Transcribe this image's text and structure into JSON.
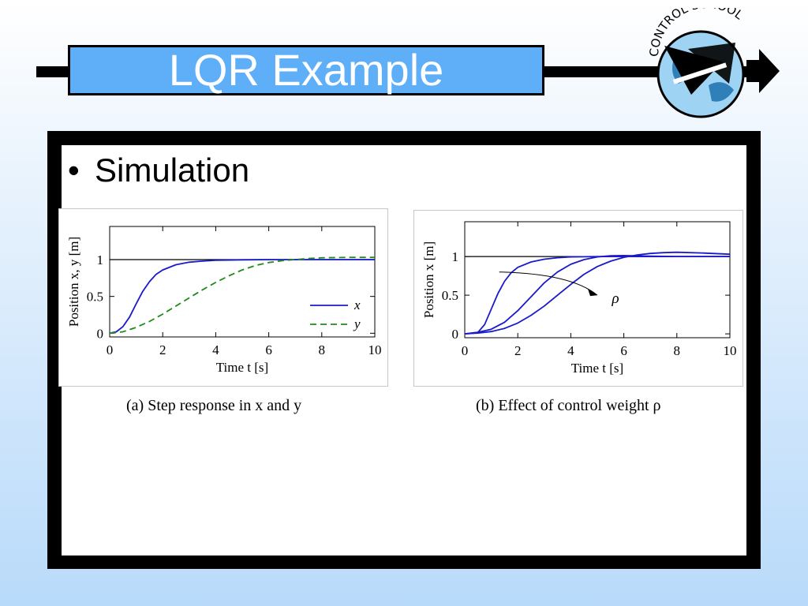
{
  "slide": {
    "title": "LQR Example",
    "bullet": "Simulation",
    "logo_text": "CONTROL SCHOOL",
    "colors": {
      "title_box": "#5eaef8",
      "frame": "#000000"
    }
  },
  "chart_data": [
    {
      "type": "line",
      "caption": "(a) Step response in x and y",
      "xlabel": "Time t [s]",
      "ylabel": "Position x, y [m]",
      "xlim": [
        0,
        10
      ],
      "ylim": [
        -0.05,
        1.45
      ],
      "xticks": [
        0,
        2,
        4,
        6,
        8,
        10
      ],
      "yticks": [
        0,
        0.5,
        1
      ],
      "reference": 1,
      "legend": "lower-right",
      "series": [
        {
          "name": "x",
          "color": "#1a1acc",
          "style": "solid",
          "x": [
            0,
            0.25,
            0.5,
            0.75,
            1,
            1.25,
            1.5,
            1.75,
            2,
            2.5,
            3,
            3.5,
            4,
            5,
            6,
            7,
            8,
            9,
            10
          ],
          "y": [
            0,
            0.02,
            0.09,
            0.22,
            0.4,
            0.57,
            0.7,
            0.8,
            0.86,
            0.93,
            0.965,
            0.98,
            0.99,
            0.997,
            1.0,
            1.0,
            1.0,
            1.0,
            1.0
          ]
        },
        {
          "name": "y",
          "color": "#208a20",
          "style": "dashed",
          "x": [
            0,
            0.5,
            1,
            1.5,
            2,
            2.5,
            3,
            3.5,
            4,
            4.5,
            5,
            5.5,
            6,
            6.5,
            7,
            7.5,
            8,
            9,
            10
          ],
          "y": [
            0,
            0.02,
            0.08,
            0.16,
            0.26,
            0.37,
            0.48,
            0.59,
            0.69,
            0.78,
            0.86,
            0.92,
            0.96,
            0.985,
            1.0,
            1.015,
            1.025,
            1.03,
            1.03
          ]
        }
      ]
    },
    {
      "type": "line",
      "caption": "(b) Effect of control weight ρ",
      "xlabel": "Time t [s]",
      "ylabel": "Position x [m]",
      "xlim": [
        0,
        10
      ],
      "ylim": [
        -0.05,
        1.45
      ],
      "xticks": [
        0,
        2,
        4,
        6,
        8,
        10
      ],
      "yticks": [
        0,
        0.5,
        1
      ],
      "reference": 1,
      "annotation": "ρ",
      "series": [
        {
          "color": "#1a1acc",
          "x": [
            0,
            0.5,
            0.75,
            1,
            1.25,
            1.5,
            1.75,
            2,
            2.5,
            3,
            3.5,
            4,
            5,
            6,
            7,
            8,
            10
          ],
          "y": [
            0,
            0.02,
            0.12,
            0.32,
            0.52,
            0.68,
            0.79,
            0.86,
            0.93,
            0.965,
            0.985,
            0.995,
            1.0,
            1.0,
            1.0,
            1.0,
            1.0
          ]
        },
        {
          "color": "#1a1acc",
          "x": [
            0,
            0.5,
            1,
            1.5,
            2,
            2.5,
            3,
            3.5,
            4,
            4.5,
            5,
            5.5,
            6,
            7,
            8,
            10
          ],
          "y": [
            0,
            0.02,
            0.06,
            0.15,
            0.3,
            0.48,
            0.66,
            0.8,
            0.9,
            0.96,
            0.995,
            1.01,
            1.012,
            1.005,
            1.0,
            1.0
          ]
        },
        {
          "color": "#1a1acc",
          "x": [
            0,
            0.5,
            1,
            1.5,
            2,
            2.5,
            3,
            3.5,
            4,
            4.5,
            5,
            5.5,
            6,
            6.5,
            7,
            7.5,
            8,
            9,
            10
          ],
          "y": [
            0,
            0.01,
            0.03,
            0.07,
            0.14,
            0.24,
            0.36,
            0.5,
            0.64,
            0.77,
            0.87,
            0.94,
            0.99,
            1.02,
            1.04,
            1.05,
            1.055,
            1.045,
            1.03
          ]
        }
      ]
    }
  ]
}
